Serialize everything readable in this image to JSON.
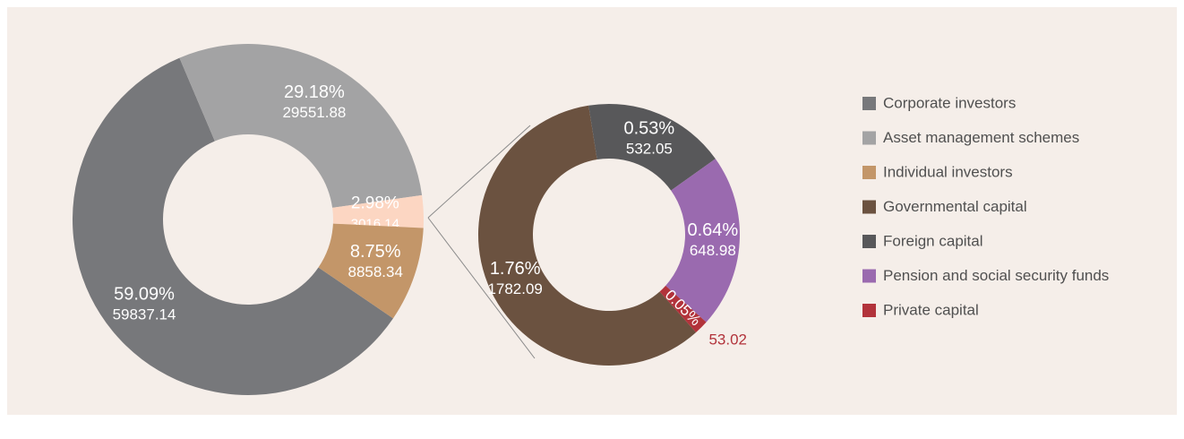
{
  "chart_data": [
    {
      "type": "donut",
      "categories": [
        "Corporate investors",
        "Asset management schemes",
        null,
        "Individual investors"
      ],
      "values": [
        59837.14,
        29551.88,
        3016.14,
        8858.34
      ],
      "share_labels": [
        "59.09%",
        "29.18%",
        "2.98%",
        "8.75%"
      ],
      "colors": [
        "#77787b",
        "#a3a3a4",
        "#fcd6c2",
        "#c39669"
      ]
    },
    {
      "type": "donut",
      "categories": [
        "Governmental capital",
        "Foreign capital",
        "Pension and social security funds",
        "Private capital"
      ],
      "values": [
        1782.09,
        532.05,
        648.98,
        53.02
      ],
      "share_labels": [
        "1.76%",
        "0.53%",
        "0.64%",
        "0.05%"
      ],
      "colors": [
        "#6b5240",
        "#58585a",
        "#9a6aaf",
        "#b2333b"
      ]
    }
  ]
}
